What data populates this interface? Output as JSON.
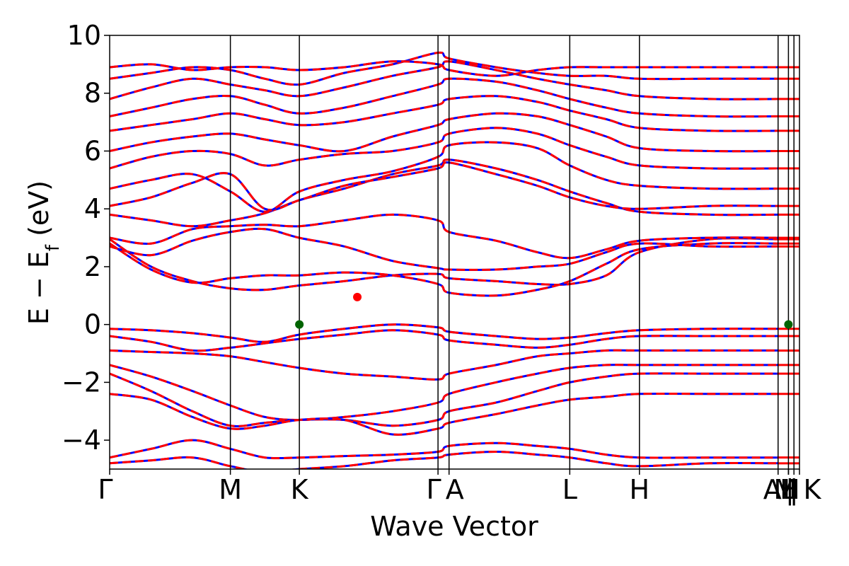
{
  "chart_data": {
    "type": "line",
    "xlabel": "Wave Vector",
    "ylabel_parts": {
      "main": "E − E",
      "sub": "f",
      "unit": " (eV)"
    },
    "ylim": [
      -5,
      10
    ],
    "yticks": [
      -4,
      -2,
      0,
      2,
      4,
      6,
      8,
      10
    ],
    "ytick_labels": [
      "−4",
      "−2",
      "0",
      "2",
      "4",
      "6",
      "8",
      "10"
    ],
    "xlim": [
      0,
      1
    ],
    "kpoints": [
      {
        "label": "Γ",
        "x": 0.0
      },
      {
        "label": "M",
        "x": 0.175
      },
      {
        "label": "K",
        "x": 0.275
      },
      {
        "label": "Γ",
        "x": 0.476
      },
      {
        "label": "A",
        "x": 0.492
      },
      {
        "label": "L",
        "x": 0.667
      },
      {
        "label": "H",
        "x": 0.768
      },
      {
        "label": "A",
        "x": 0.969
      },
      {
        "label": "M",
        "x": 0.969
      },
      {
        "label": "|",
        "x": 0.984
      },
      {
        "label": "L",
        "x": 0.984
      },
      {
        "label": "H",
        "x": 0.984
      },
      {
        "label": "|",
        "x": 0.992
      },
      {
        "label": "K",
        "x": 1.0
      }
    ],
    "series_colors": {
      "spin_a": "#0000ff",
      "spin_b": "#ff0000"
    },
    "markers": [
      {
        "x": 0.275,
        "y": 0.0,
        "color": "#006400"
      },
      {
        "x": 0.359,
        "y": 0.95,
        "color": "#ff0000"
      },
      {
        "x": 0.984,
        "y": 0.0,
        "color": "#006400"
      }
    ],
    "bands": [
      {
        "y": [
          2.95,
          2.0,
          1.5,
          1.25,
          1.2,
          1.35,
          1.5,
          1.7,
          1.75,
          1.6,
          1.5,
          1.4,
          1.4,
          1.7,
          2.5,
          2.95,
          2.95
        ]
      },
      {
        "y": [
          2.8,
          1.9,
          1.45,
          1.6,
          1.7,
          1.7,
          1.8,
          1.7,
          1.4,
          1.1,
          1.0,
          1.2,
          1.5,
          2.1,
          2.6,
          2.8,
          2.8
        ]
      },
      {
        "y": [
          2.7,
          2.4,
          2.9,
          3.2,
          3.3,
          3.0,
          2.7,
          2.2,
          1.95,
          1.9,
          1.9,
          2.0,
          2.1,
          2.5,
          2.8,
          2.7,
          2.7
        ]
      },
      {
        "y": [
          3.0,
          2.8,
          3.3,
          3.4,
          3.45,
          3.4,
          3.6,
          3.8,
          3.6,
          3.2,
          2.9,
          2.5,
          2.3,
          2.6,
          2.9,
          3.0,
          3.0
        ]
      },
      {
        "y": [
          -0.15,
          -0.2,
          -0.3,
          -0.45,
          -0.6,
          -0.35,
          -0.15,
          0.0,
          -0.1,
          -0.25,
          -0.4,
          -0.5,
          -0.45,
          -0.3,
          -0.2,
          -0.15,
          -0.15
        ]
      },
      {
        "y": [
          -0.4,
          -0.6,
          -0.9,
          -0.8,
          -0.65,
          -0.5,
          -0.35,
          -0.2,
          -0.35,
          -0.55,
          -0.7,
          -0.8,
          -0.7,
          -0.5,
          -0.4,
          -0.4,
          -0.4
        ]
      },
      {
        "y": [
          -0.9,
          -0.95,
          -1.0,
          -1.1,
          -1.3,
          -1.5,
          -1.7,
          -1.8,
          -1.9,
          -1.7,
          -1.4,
          -1.1,
          -1.0,
          -0.9,
          -0.9,
          -0.9,
          -0.9
        ]
      },
      {
        "y": [
          -1.4,
          -1.8,
          -2.3,
          -2.8,
          -3.2,
          -3.3,
          -3.2,
          -3.0,
          -2.7,
          -2.4,
          -2.0,
          -1.7,
          -1.5,
          -1.4,
          -1.4,
          -1.4,
          -1.4
        ]
      },
      {
        "y": [
          -1.7,
          -2.3,
          -3.0,
          -3.5,
          -3.4,
          -3.3,
          -3.3,
          -3.5,
          -3.3,
          -3.0,
          -2.7,
          -2.3,
          -2.0,
          -1.8,
          -1.7,
          -1.7,
          -1.7
        ]
      },
      {
        "y": [
          -2.4,
          -2.6,
          -3.2,
          -3.6,
          -3.5,
          -3.3,
          -3.3,
          -3.8,
          -3.6,
          -3.4,
          -3.1,
          -2.8,
          -2.6,
          -2.5,
          -2.4,
          -2.4,
          -2.4
        ]
      },
      {
        "y": [
          -4.6,
          -4.3,
          -4.0,
          -4.3,
          -4.6,
          -4.6,
          -4.55,
          -4.5,
          -4.4,
          -4.2,
          -4.1,
          -4.2,
          -4.3,
          -4.5,
          -4.6,
          -4.6,
          -4.6
        ]
      },
      {
        "y": [
          -4.8,
          -4.7,
          -4.6,
          -4.9,
          -5.1,
          -5.0,
          -4.9,
          -4.7,
          -4.6,
          -4.5,
          -4.4,
          -4.5,
          -4.6,
          -4.8,
          -4.9,
          -4.8,
          -4.8
        ]
      },
      {
        "y": [
          3.8,
          3.6,
          3.4,
          3.6,
          3.85,
          4.3,
          4.7,
          5.2,
          5.5,
          5.7,
          5.4,
          5.0,
          4.6,
          4.2,
          3.9,
          3.8,
          3.8
        ]
      },
      {
        "y": [
          4.1,
          4.4,
          4.9,
          5.2,
          4.0,
          4.3,
          4.8,
          5.1,
          5.4,
          5.6,
          5.2,
          4.8,
          4.4,
          4.1,
          4.0,
          4.1,
          4.1
        ]
      },
      {
        "y": [
          4.7,
          5.0,
          5.2,
          4.6,
          3.9,
          4.6,
          5.0,
          5.3,
          5.8,
          6.2,
          6.3,
          6.1,
          5.5,
          5.0,
          4.8,
          4.7,
          4.7
        ]
      },
      {
        "y": [
          5.4,
          5.8,
          6.0,
          5.9,
          5.5,
          5.7,
          5.9,
          6.0,
          6.3,
          6.6,
          6.8,
          6.6,
          6.2,
          5.8,
          5.5,
          5.4,
          5.4
        ]
      },
      {
        "y": [
          6.0,
          6.3,
          6.5,
          6.6,
          6.4,
          6.2,
          6.0,
          6.5,
          6.9,
          7.1,
          7.3,
          7.2,
          6.9,
          6.5,
          6.1,
          6.0,
          6.0
        ]
      },
      {
        "y": [
          6.7,
          6.9,
          7.1,
          7.3,
          7.1,
          6.9,
          7.0,
          7.3,
          7.6,
          7.8,
          7.9,
          7.7,
          7.4,
          7.1,
          6.8,
          6.7,
          6.7
        ]
      },
      {
        "y": [
          7.2,
          7.5,
          7.8,
          7.9,
          7.6,
          7.3,
          7.5,
          7.9,
          8.3,
          8.5,
          8.4,
          8.1,
          7.8,
          7.5,
          7.3,
          7.2,
          7.2
        ]
      },
      {
        "y": [
          7.8,
          8.2,
          8.5,
          8.3,
          8.1,
          7.9,
          8.2,
          8.6,
          8.9,
          9.1,
          8.8,
          8.5,
          8.3,
          8.1,
          7.9,
          7.8,
          7.8
        ]
      },
      {
        "y": [
          8.5,
          8.7,
          8.9,
          8.8,
          8.5,
          8.3,
          8.7,
          9.0,
          9.4,
          9.2,
          8.9,
          8.7,
          8.6,
          8.6,
          8.5,
          8.5,
          8.5
        ]
      },
      {
        "y": [
          8.9,
          9.0,
          8.8,
          8.9,
          8.9,
          8.8,
          8.9,
          9.1,
          9.0,
          8.8,
          8.6,
          8.8,
          8.9,
          8.9,
          8.9,
          8.9,
          8.9
        ]
      }
    ]
  }
}
